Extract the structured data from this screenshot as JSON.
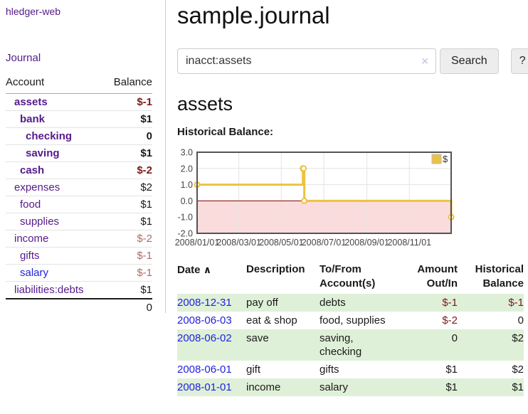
{
  "colors": {
    "link_visited": "#551a8b",
    "link_blue": "#2222dd",
    "neg_strong": "#7d1a1a",
    "neg_muted": "#b06a6a",
    "row_green": "#dff0d8",
    "chart_line": "#edc240",
    "chart_negative_region": "#fbdcdc",
    "chart_zero_line": "#8b0000"
  },
  "icons": {
    "clear": "✕",
    "sort_asc": "∧"
  },
  "sidebar": {
    "app_title": "hledger-web",
    "journal_link": "Journal",
    "accounts_header": {
      "account": "Account",
      "balance": "Balance"
    },
    "accounts": [
      {
        "label": "assets",
        "depth": 1,
        "in_query": true,
        "balance": "$-1",
        "balance_class": "neg-strong"
      },
      {
        "label": "bank",
        "depth": 2,
        "in_query": true,
        "balance": "$1",
        "balance_class": ""
      },
      {
        "label": "checking",
        "depth": 3,
        "in_query": true,
        "balance": "0",
        "balance_class": ""
      },
      {
        "label": "saving",
        "depth": 3,
        "in_query": true,
        "balance": "$1",
        "balance_class": ""
      },
      {
        "label": "cash",
        "depth": 2,
        "in_query": true,
        "balance": "$-2",
        "balance_class": "neg-strong"
      },
      {
        "label": "expenses",
        "depth": 1,
        "in_query": false,
        "balance": "$2",
        "balance_class": ""
      },
      {
        "label": "food",
        "depth": 2,
        "in_query": false,
        "balance": "$1",
        "balance_class": ""
      },
      {
        "label": "supplies",
        "depth": 2,
        "in_query": false,
        "balance": "$1",
        "balance_class": ""
      },
      {
        "label": "income",
        "depth": 1,
        "in_query": false,
        "balance": "$-2",
        "balance_class": "neg-muted"
      },
      {
        "label": "gifts",
        "depth": 2,
        "in_query": false,
        "balance": "$-1",
        "balance_class": "neg-muted"
      },
      {
        "label": "salary",
        "depth": 2,
        "in_query": false,
        "balance": "$-1",
        "balance_class": "neg-muted",
        "link_color": "blue"
      },
      {
        "label": "liabilities:debts",
        "depth": 1,
        "in_query": false,
        "balance": "$1",
        "balance_class": ""
      }
    ],
    "total": "0"
  },
  "header": {
    "title": "sample.journal"
  },
  "search": {
    "value": "inacct:assets",
    "button_label": "Search",
    "help_label": "?"
  },
  "main": {
    "account_heading": "assets",
    "chart_label": "Historical Balance:"
  },
  "chart_data": {
    "type": "line",
    "step": true,
    "series": [
      {
        "name": "$",
        "color": "#edc240",
        "points": [
          [
            "2008-01-01",
            1
          ],
          [
            "2008-06-01",
            2
          ],
          [
            "2008-06-02",
            2
          ],
          [
            "2008-06-03",
            0
          ],
          [
            "2008-12-31",
            -1
          ]
        ]
      }
    ],
    "x_ticks": [
      "2008/01/01",
      "2008/03/01",
      "2008/05/01",
      "2008/07/01",
      "2008/09/01",
      "2008/11/01"
    ],
    "y_ticks": [
      "3.0",
      "2.0",
      "1.0",
      "0.0",
      "-1.0",
      "-2.0"
    ],
    "xlim": [
      "2008-01-01",
      "2008-12-31"
    ],
    "ylim": [
      -2,
      3
    ],
    "grid": true,
    "legend_position": "top-right",
    "negative_region_color": "#fbdcdc",
    "zero_line_color": "#8b0000"
  },
  "register": {
    "headers": {
      "date": "Date",
      "description": "Description",
      "tofrom": "To/From Account(s)",
      "amount": "Amount Out/In",
      "balance": "Historical Balance"
    },
    "rows": [
      {
        "date": "2008-12-31",
        "description": "pay off",
        "accounts": "debts",
        "amount": "$-1",
        "balance": "$-1"
      },
      {
        "date": "2008-06-03",
        "description": "eat & shop",
        "accounts": "food, supplies",
        "amount": "$-2",
        "balance": "0"
      },
      {
        "date": "2008-06-02",
        "description": "save",
        "accounts": "saving,\nchecking",
        "amount": "0",
        "balance": "$2"
      },
      {
        "date": "2008-06-01",
        "description": "gift",
        "accounts": "gifts",
        "amount": "$1",
        "balance": "$2"
      },
      {
        "date": "2008-01-01",
        "description": "income",
        "accounts": "salary",
        "amount": "$1",
        "balance": "$1"
      }
    ]
  }
}
